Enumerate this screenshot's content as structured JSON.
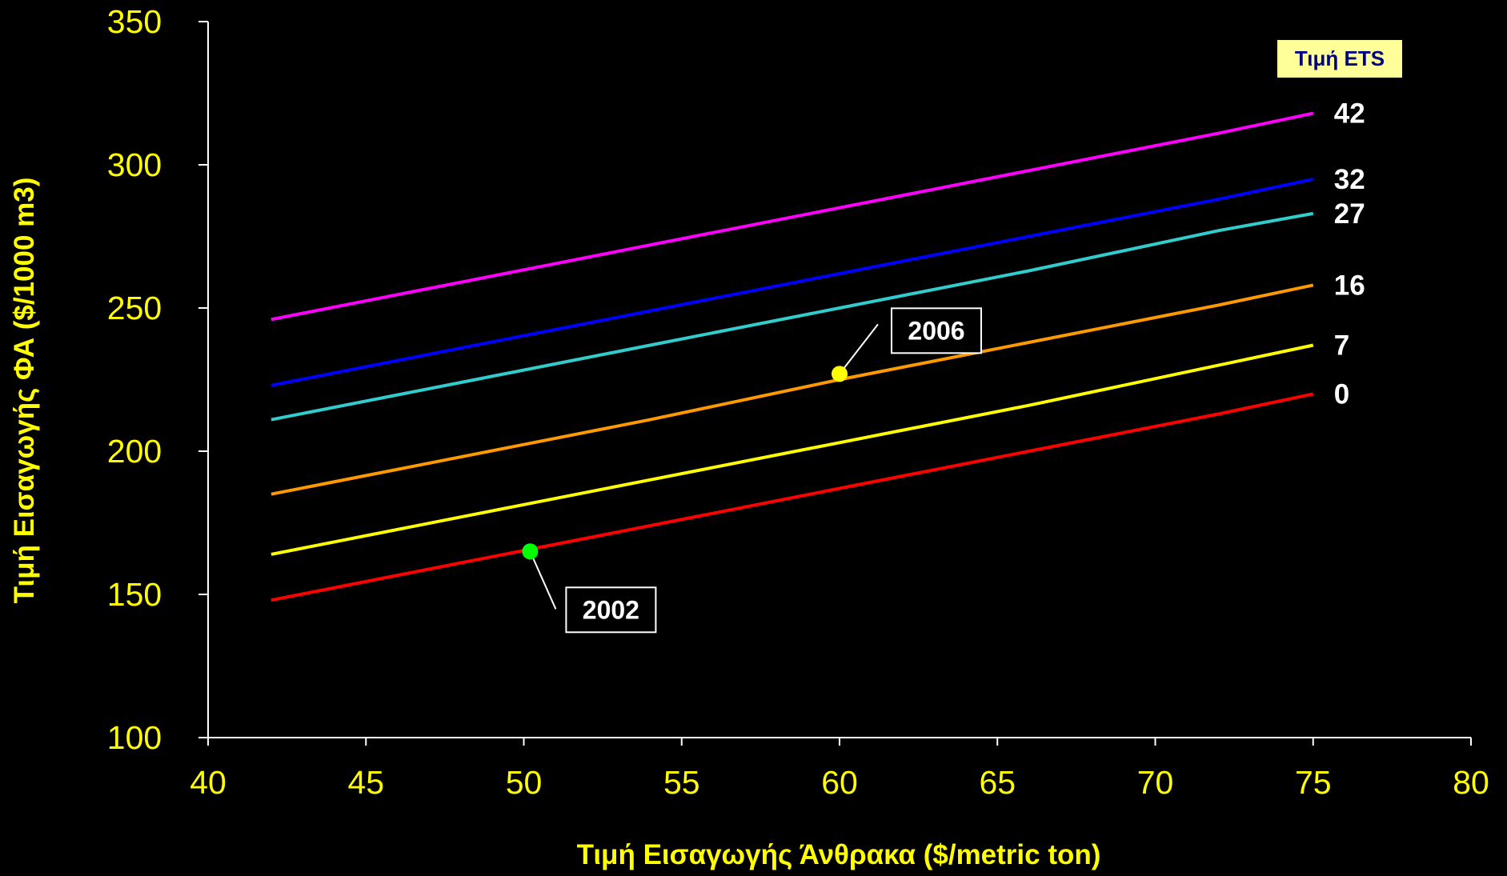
{
  "chart_data": {
    "type": "line",
    "title": "",
    "xlabel": "Τιμή Εισαγωγής Άνθρακα ($/metric ton)",
    "ylabel": "Τιμή Εισαγωγής ΦΑ ($/1000 m3)",
    "xlim": [
      40,
      80
    ],
    "ylim": [
      100,
      350
    ],
    "x_ticks": [
      "40",
      "45",
      "50",
      "55",
      "60",
      "65",
      "70",
      "75",
      "80"
    ],
    "y_ticks": [
      "100",
      "150",
      "200",
      "250",
      "300",
      "350"
    ],
    "grid": false,
    "legend_title": "Τιμή ETS",
    "legend_placement": "top-right",
    "x": [
      42,
      48,
      54,
      60,
      66,
      72,
      75
    ],
    "series": [
      {
        "name": "42",
        "color": "#FF00FF",
        "values": [
          246,
          259,
          272,
          285,
          298,
          311,
          318
        ]
      },
      {
        "name": "32",
        "color": "#0000FF",
        "values": [
          223,
          236,
          249,
          262,
          275,
          288,
          295
        ]
      },
      {
        "name": "27",
        "color": "#33CCCC",
        "values": [
          211,
          224,
          237,
          250,
          263,
          277,
          283
        ]
      },
      {
        "name": "16",
        "color": "#FF9900",
        "values": [
          185,
          198,
          211,
          225,
          238,
          251,
          258
        ]
      },
      {
        "name": "7",
        "color": "#FFFF00",
        "values": [
          164,
          177,
          190,
          203,
          216,
          230,
          237
        ]
      },
      {
        "name": "0",
        "color": "#FF0000",
        "values": [
          148,
          161,
          174,
          187,
          200,
          213,
          220
        ]
      }
    ],
    "annotations": [
      {
        "label": "2002",
        "x": 50.2,
        "y": 165,
        "marker_color": "#00FF00"
      },
      {
        "label": "2006",
        "x": 60,
        "y": 227,
        "marker_color": "#FFFF00"
      }
    ]
  }
}
